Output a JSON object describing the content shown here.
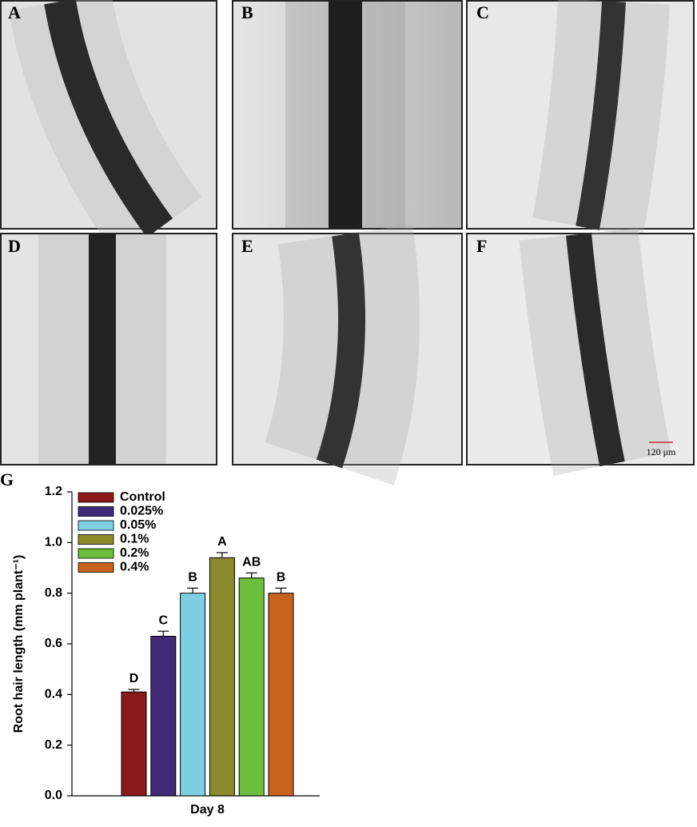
{
  "figure": {
    "panels": [
      "A",
      "B",
      "C",
      "D",
      "E",
      "F"
    ],
    "scale_bar": "120 μm",
    "chart_label": "G"
  },
  "chart_data": {
    "type": "bar",
    "y_label": "Root hair length (mm plant⁻¹)",
    "categories": [
      "Day 8"
    ],
    "series": [
      {
        "name": "Control",
        "color": "#8b1a1a",
        "values": [
          0.41
        ],
        "errors": [
          0.01
        ],
        "labels": [
          "D"
        ]
      },
      {
        "name": "0.025%",
        "color": "#3f2a78",
        "values": [
          0.63
        ],
        "errors": [
          0.02
        ],
        "labels": [
          "C"
        ]
      },
      {
        "name": "0.05%",
        "color": "#7fcfe2",
        "values": [
          0.8
        ],
        "errors": [
          0.02
        ],
        "labels": [
          "B"
        ]
      },
      {
        "name": "0.1%",
        "color": "#8a8a2c",
        "values": [
          0.94
        ],
        "errors": [
          0.02
        ],
        "labels": [
          "A"
        ]
      },
      {
        "name": "0.2%",
        "color": "#6cbf3a",
        "values": [
          0.86
        ],
        "errors": [
          0.02
        ],
        "labels": [
          "AB"
        ]
      },
      {
        "name": "0.4%",
        "color": "#c8621e",
        "values": [
          0.8
        ],
        "errors": [
          0.02
        ],
        "labels": [
          "B"
        ]
      }
    ],
    "ylim": [
      0,
      1.2
    ],
    "yticks": [
      {
        "value": 0,
        "label": "0.0"
      },
      0.2,
      0.4,
      0.6,
      0.8,
      {
        "value": 1,
        "label": "1.0"
      },
      1.2
    ],
    "legend": "upper left"
  }
}
